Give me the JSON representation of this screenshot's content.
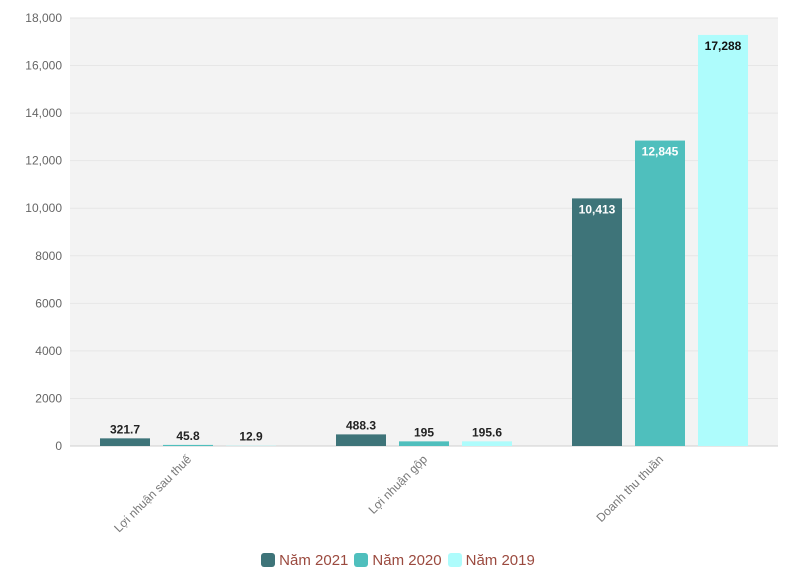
{
  "chart_data": {
    "type": "bar",
    "categories": [
      "Lợi nhuận sau thuế",
      "Lợi nhuận gộp",
      "Doanh thu thuần"
    ],
    "series": [
      {
        "name": "Năm 2021",
        "color": "#3e7479",
        "values": [
          321.7,
          488.3,
          10413
        ],
        "labels": [
          "321.7",
          "488.3",
          "10,413"
        ]
      },
      {
        "name": "Năm 2020",
        "color": "#4fbfbd",
        "values": [
          45.8,
          195,
          12845
        ],
        "labels": [
          "45.8",
          "195",
          "12,845"
        ]
      },
      {
        "name": "Năm 2019",
        "color": "#aefcfc",
        "values": [
          12.9,
          195.6,
          17288
        ],
        "labels": [
          "12.9",
          "195.6",
          "17,288"
        ]
      }
    ],
    "y_ticks": [
      {
        "value": 0,
        "label": "0"
      },
      {
        "value": 2000,
        "label": "2000"
      },
      {
        "value": 4000,
        "label": "4000"
      },
      {
        "value": 6000,
        "label": "6000"
      },
      {
        "value": 8000,
        "label": "8000"
      },
      {
        "value": 10000,
        "label": "10,000"
      },
      {
        "value": 12000,
        "label": "12,000"
      },
      {
        "value": 14000,
        "label": "14,000"
      },
      {
        "value": 16000,
        "label": "16,000"
      },
      {
        "value": 18000,
        "label": "18,000"
      }
    ],
    "ylim": [
      0,
      18000
    ],
    "grid": true,
    "legend_position": "bottom"
  }
}
